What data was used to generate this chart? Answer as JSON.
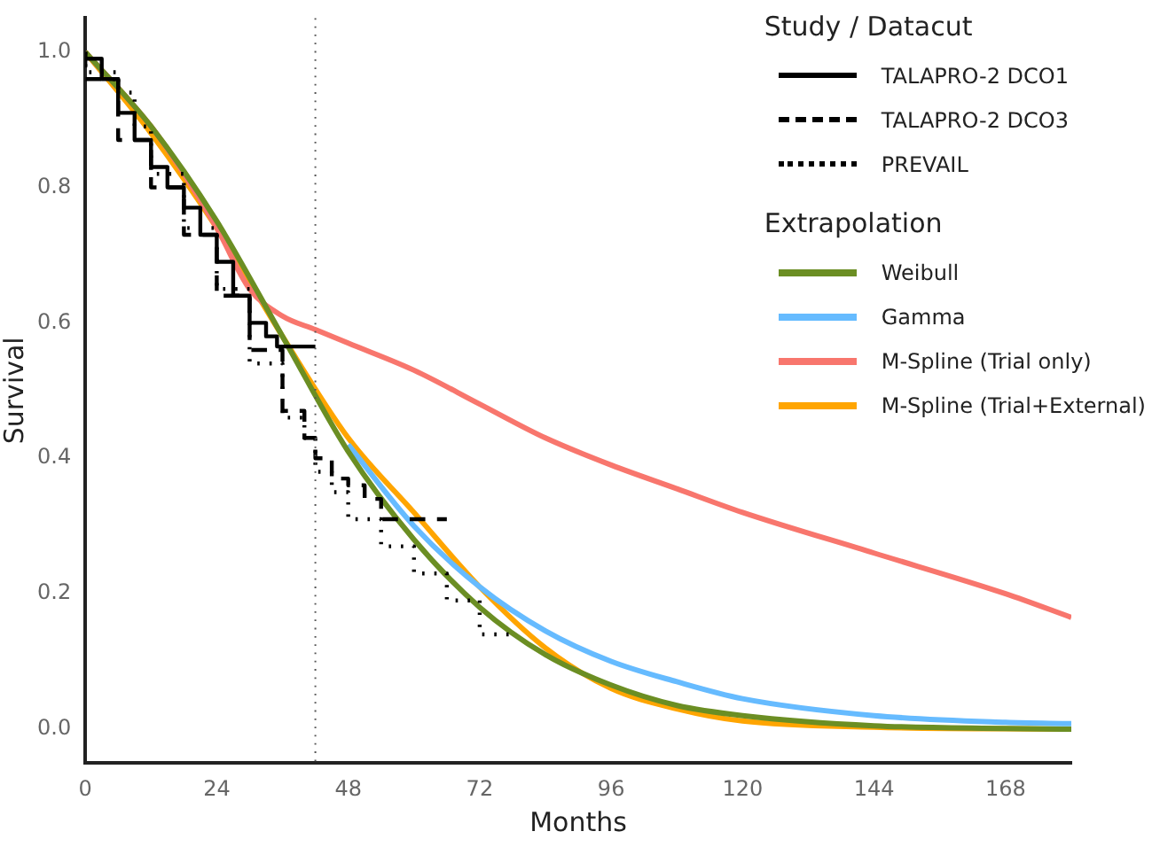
{
  "chart_data": {
    "type": "line",
    "xlabel": "Months",
    "ylabel": "Survival",
    "legend_title": "Study / Datacut",
    "annotations": [
      "Extrapolation"
    ],
    "legend": "top right",
    "grid": false,
    "marker": "none",
    "xlim": [
      0,
      180
    ],
    "xticks": [
      0,
      24,
      48,
      72,
      96,
      120,
      144,
      168
    ],
    "ylim": [
      -0.05,
      1.05
    ],
    "yticks": [
      {
        "value": 0,
        "label": "0.0"
      },
      0.2,
      0.4,
      0.6,
      0.8,
      {
        "value": 1,
        "label": "1.0"
      }
    ],
    "ref_lines": [
      {
        "axis": "x",
        "value": 42,
        "label": null,
        "color": "#555555",
        "line_style": "dotted"
      }
    ],
    "series": [
      {
        "name": "TALAPRO-2 DCO1",
        "type": "step",
        "color": "#000000",
        "line_style": "solid",
        "x": [
          0,
          3,
          6,
          9,
          12,
          15,
          18,
          21,
          24,
          27,
          30,
          33,
          35,
          36,
          42
        ],
        "values": [
          1.0,
          0.99,
          0.96,
          0.91,
          0.87,
          0.83,
          0.8,
          0.77,
          0.73,
          0.69,
          0.64,
          0.6,
          0.58,
          0.565,
          0.565
        ]
      },
      {
        "name": "TALAPRO-2 DCO3",
        "type": "step",
        "color": "#000000",
        "line_style": "dashed",
        "x": [
          0,
          6,
          12,
          18,
          24,
          30,
          36,
          40,
          42,
          45,
          48,
          51,
          54,
          57,
          66
        ],
        "values": [
          1.0,
          0.96,
          0.87,
          0.8,
          0.73,
          0.64,
          0.56,
          0.47,
          0.43,
          0.4,
          0.37,
          0.36,
          0.34,
          0.31,
          0.31
        ]
      },
      {
        "name": "PREVAIL",
        "type": "step",
        "color": "#000000",
        "line_style": "dotted",
        "x": [
          0,
          6,
          9,
          12,
          18,
          24,
          30,
          36,
          40,
          42,
          45,
          48,
          54,
          60,
          66,
          72,
          78
        ],
        "values": [
          1.0,
          0.97,
          0.94,
          0.89,
          0.82,
          0.74,
          0.65,
          0.54,
          0.46,
          0.43,
          0.38,
          0.35,
          0.31,
          0.27,
          0.23,
          0.19,
          0.14
        ]
      },
      {
        "name": "Weibull",
        "color": "#6b8e23",
        "line_style": "solid",
        "x": [
          0,
          12,
          24,
          36,
          48,
          60,
          72,
          84,
          96,
          108,
          120,
          144,
          168,
          180
        ],
        "values": [
          1.0,
          0.89,
          0.75,
          0.58,
          0.41,
          0.28,
          0.18,
          0.11,
          0.065,
          0.035,
          0.02,
          0.005,
          0.001,
          0.0
        ]
      },
      {
        "name": "Gamma",
        "color": "#66bbff",
        "line_style": "solid",
        "x": [
          48,
          60,
          72,
          84,
          96,
          108,
          120,
          144,
          168,
          180
        ],
        "values": [
          0.42,
          0.3,
          0.21,
          0.145,
          0.1,
          0.07,
          0.045,
          0.02,
          0.01,
          0.008
        ]
      },
      {
        "name": "M-Spline (Trial only)",
        "color": "#f8766d",
        "line_style": "solid",
        "x": [
          0,
          12,
          18,
          24,
          30,
          36,
          42,
          48,
          60,
          72,
          84,
          96,
          108,
          120,
          144,
          168,
          180
        ],
        "values": [
          1.0,
          0.89,
          0.82,
          0.74,
          0.65,
          0.61,
          0.59,
          0.57,
          0.53,
          0.48,
          0.43,
          0.39,
          0.355,
          0.32,
          0.26,
          0.2,
          0.165
        ]
      },
      {
        "name": "M-Spline (Trial+External)",
        "color": "#ffa500",
        "line_style": "solid",
        "x": [
          0,
          12,
          24,
          36,
          48,
          60,
          72,
          84,
          96,
          108,
          120,
          144,
          180
        ],
        "values": [
          1.0,
          0.88,
          0.74,
          0.58,
          0.43,
          0.32,
          0.21,
          0.12,
          0.06,
          0.03,
          0.012,
          0.003,
          0.0
        ]
      }
    ]
  }
}
